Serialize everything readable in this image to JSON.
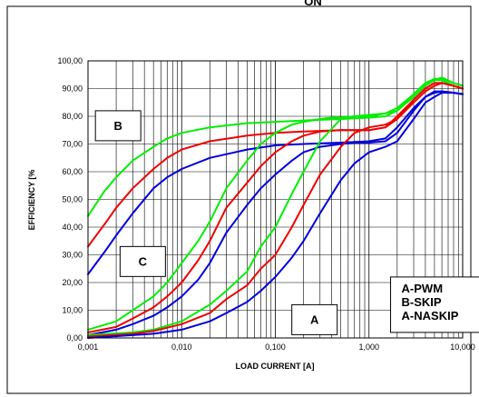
{
  "top_fragment": "ON",
  "chart_data": {
    "type": "line",
    "title": "",
    "xlabel": "LOAD CURRENT [A]",
    "ylabel": "EFFICIENCY [%",
    "xscale": "log",
    "xlim": [
      0.001,
      10
    ],
    "ylim": [
      0,
      100
    ],
    "grid": true,
    "xtick_labels": [
      "0,001",
      "0,010",
      "0,100",
      "1,000",
      "10,000"
    ],
    "xtick_values": [
      0.001,
      0.01,
      0.1,
      1,
      10
    ],
    "ytick_labels": [
      "0,00",
      "10,00",
      "20,00",
      "30,00",
      "40,00",
      "50,00",
      "60,00",
      "70,00",
      "80,00",
      "90,00",
      "100,00"
    ],
    "ytick_values": [
      0,
      10,
      20,
      30,
      40,
      50,
      60,
      70,
      80,
      90,
      100
    ],
    "colors": {
      "green": "#00ee00",
      "red": "#ee0000",
      "blue": "#0000dd"
    },
    "annotations": [
      {
        "text": "B",
        "x": 0.0012,
        "y": 82
      },
      {
        "text": "C",
        "x": 0.0022,
        "y": 33
      },
      {
        "text": "A",
        "x": 0.15,
        "y": 12
      }
    ],
    "legend_text": [
      "A-PWM",
      "B-SKIP",
      "A-NASKIP"
    ],
    "legend_anchor": {
      "x": 1.7,
      "y": 22
    },
    "series": [
      {
        "color_key": "green",
        "x": [
          0.001,
          0.0015,
          0.002,
          0.003,
          0.005,
          0.007,
          0.01,
          0.02,
          0.05,
          0.1,
          0.2,
          0.5,
          1,
          1.5,
          2,
          3,
          4,
          5,
          6,
          8,
          10
        ],
        "y": [
          44,
          53,
          58,
          64,
          69,
          72,
          74,
          76,
          77.5,
          78,
          78.5,
          79,
          79.5,
          80,
          82,
          88,
          92,
          93.5,
          93.5,
          92,
          91
        ]
      },
      {
        "color_key": "red",
        "x": [
          0.001,
          0.0015,
          0.002,
          0.003,
          0.005,
          0.007,
          0.01,
          0.02,
          0.05,
          0.1,
          0.2,
          0.5,
          1,
          1.5,
          2,
          3,
          4,
          5,
          6,
          8,
          10
        ],
        "y": [
          33,
          41,
          47,
          54,
          61,
          65,
          68,
          71,
          73,
          74,
          74.5,
          75,
          75,
          76,
          80,
          86,
          90,
          92,
          92,
          91,
          90
        ]
      },
      {
        "color_key": "blue",
        "x": [
          0.001,
          0.0015,
          0.002,
          0.003,
          0.005,
          0.007,
          0.01,
          0.02,
          0.05,
          0.1,
          0.2,
          0.5,
          1,
          1.5,
          2,
          3,
          4,
          5,
          6,
          8,
          10
        ],
        "y": [
          23,
          31,
          37,
          45,
          54,
          58,
          61,
          65,
          68,
          69.5,
          70,
          70.5,
          71,
          72,
          76,
          83,
          87,
          88.5,
          89,
          88.5,
          88
        ]
      },
      {
        "color_key": "green",
        "x": [
          0.001,
          0.002,
          0.003,
          0.005,
          0.007,
          0.01,
          0.015,
          0.02,
          0.03,
          0.05,
          0.07,
          0.1,
          0.15,
          0.2,
          0.3,
          0.4,
          0.5,
          0.7,
          1,
          1.5,
          2,
          3,
          4,
          5,
          6,
          8,
          10
        ],
        "y": [
          3,
          6,
          10,
          15,
          20,
          27,
          35,
          42,
          54,
          64,
          70,
          74,
          77,
          78,
          79,
          79.5,
          79.5,
          80,
          80,
          81,
          83,
          88,
          92,
          93,
          93,
          91,
          90
        ]
      },
      {
        "color_key": "red",
        "x": [
          0.001,
          0.002,
          0.003,
          0.005,
          0.007,
          0.01,
          0.015,
          0.02,
          0.03,
          0.05,
          0.07,
          0.1,
          0.15,
          0.2,
          0.3,
          0.5,
          0.7,
          1,
          1.5,
          2,
          3,
          4,
          5,
          6,
          8,
          10
        ],
        "y": [
          2,
          4,
          7,
          11,
          15,
          20,
          28,
          35,
          47,
          56,
          62,
          67,
          71,
          73,
          74.5,
          75,
          75,
          75,
          76,
          79,
          86,
          90,
          92,
          92,
          91,
          90
        ]
      },
      {
        "color_key": "blue",
        "x": [
          0.001,
          0.002,
          0.003,
          0.005,
          0.007,
          0.01,
          0.015,
          0.02,
          0.03,
          0.05,
          0.07,
          0.1,
          0.15,
          0.2,
          0.3,
          0.5,
          0.7,
          1,
          1.5,
          2,
          3,
          4,
          5,
          6,
          8,
          10
        ],
        "y": [
          1,
          3,
          5,
          8,
          11,
          15,
          21,
          27,
          38,
          48,
          54,
          59,
          64,
          67,
          69,
          70,
          70.5,
          70.5,
          71,
          74,
          82,
          87,
          89,
          89,
          88.5,
          88
        ]
      },
      {
        "color_key": "green",
        "x": [
          0.001,
          0.003,
          0.005,
          0.01,
          0.02,
          0.03,
          0.05,
          0.07,
          0.1,
          0.15,
          0.2,
          0.3,
          0.5,
          0.7,
          1,
          1.5,
          2,
          3,
          4,
          5,
          6,
          8,
          10
        ],
        "y": [
          1,
          2,
          3,
          6,
          12,
          17,
          24,
          33,
          40,
          52,
          60,
          71,
          79,
          80,
          80.5,
          81,
          82,
          87,
          91,
          93,
          94,
          92,
          91
        ]
      },
      {
        "color_key": "red",
        "x": [
          0.001,
          0.003,
          0.005,
          0.01,
          0.02,
          0.03,
          0.05,
          0.07,
          0.1,
          0.15,
          0.2,
          0.3,
          0.5,
          0.7,
          1,
          1.5,
          2,
          3,
          4,
          5,
          6,
          8,
          10
        ],
        "y": [
          0.5,
          1.5,
          2.5,
          5,
          9,
          14,
          19,
          25,
          30,
          40,
          48,
          59,
          69,
          74,
          76,
          77,
          79,
          85,
          89,
          91,
          92,
          91,
          90
        ]
      },
      {
        "color_key": "blue",
        "x": [
          0.001,
          0.003,
          0.005,
          0.01,
          0.02,
          0.03,
          0.05,
          0.07,
          0.1,
          0.15,
          0.2,
          0.3,
          0.5,
          0.7,
          1,
          1.5,
          2,
          3,
          4,
          5,
          6,
          8,
          10
        ],
        "y": [
          0,
          1,
          1.5,
          3,
          6,
          9,
          13,
          17,
          22,
          29,
          35,
          45,
          57,
          63,
          67,
          69,
          71,
          79,
          85,
          87,
          88.5,
          88.5,
          88
        ]
      }
    ]
  }
}
